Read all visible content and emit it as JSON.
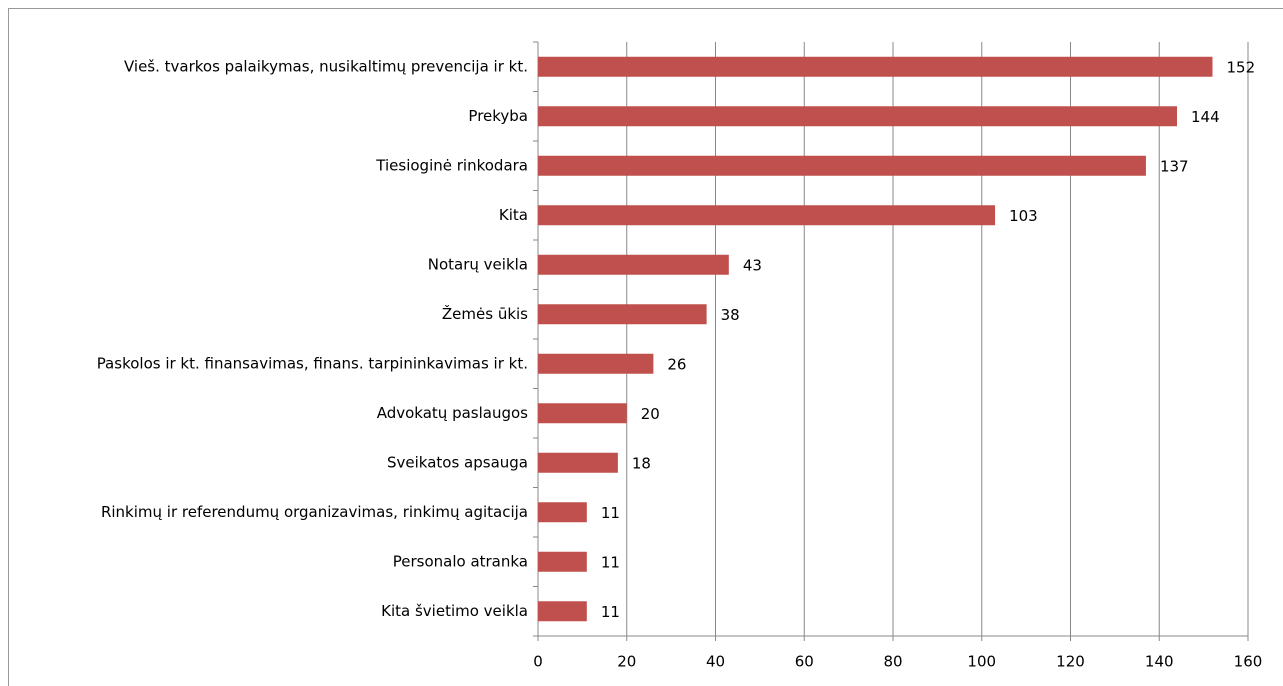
{
  "chart_data": {
    "type": "bar",
    "orientation": "horizontal",
    "categories": [
      "Vieš. tvarkos palaikymas, nusikaltimų prevencija ir kt.",
      "Prekyba",
      "Tiesioginė rinkodara",
      "Kita",
      "Notarų veikla",
      "Žemės ūkis",
      "Paskolos ir kt. finansavimas, finans. tarpininkavimas ir kt.",
      "Advokatų paslaugos",
      "Sveikatos apsauga",
      "Rinkimų ir referendumų organizavimas, rinkimų agitacija",
      "Personalo atranka",
      "Kita švietimo veikla"
    ],
    "values": [
      152,
      144,
      137,
      103,
      43,
      38,
      26,
      20,
      18,
      11,
      11,
      11
    ],
    "color": "#c0504d",
    "xlim": [
      0,
      160
    ],
    "xticks": [
      0,
      20,
      40,
      60,
      80,
      100,
      120,
      140,
      160
    ],
    "grid": true
  }
}
